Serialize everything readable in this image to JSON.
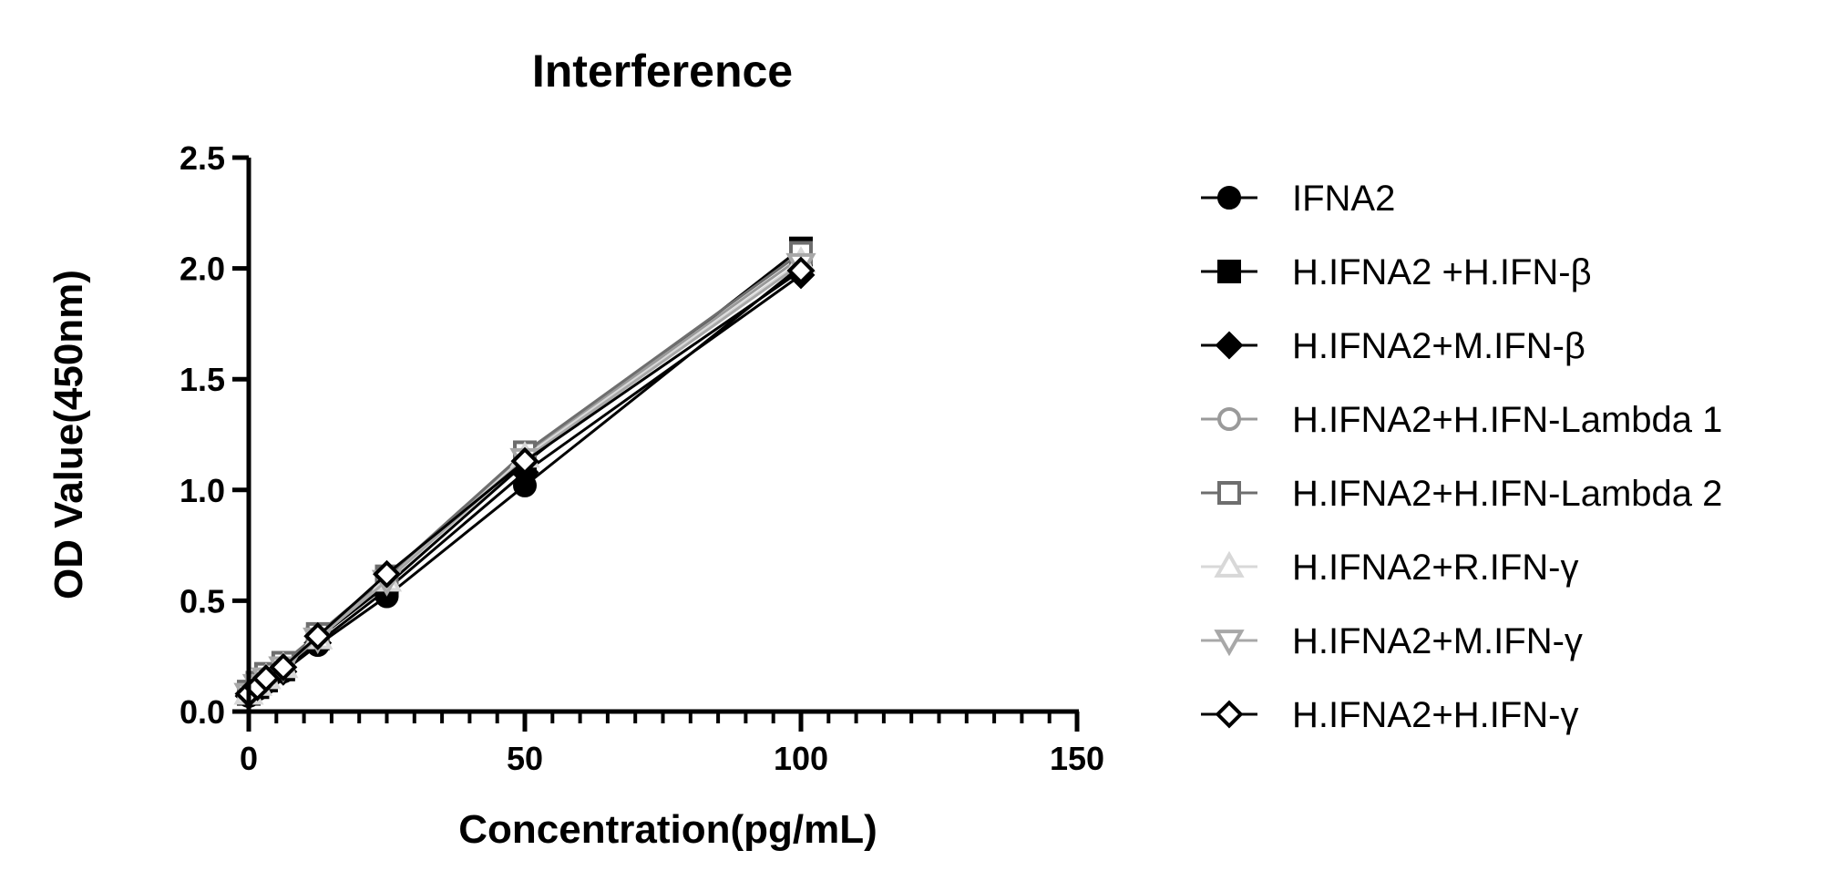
{
  "chart_data": {
    "type": "line",
    "title": "Interference",
    "xlabel": "Concentration(pg/mL)",
    "ylabel": "OD Value(450nm)",
    "xlim": [
      0,
      150
    ],
    "ylim": [
      0,
      2.5
    ],
    "xticks": [
      "0",
      "50",
      "100",
      "150"
    ],
    "yticks": [
      "0.0",
      "0.5",
      "1.0",
      "1.5",
      "2.0",
      "2.5"
    ],
    "x_minor_step": 5,
    "grid": false,
    "legend_position": "right",
    "x": [
      0,
      1.56,
      3.13,
      6.25,
      12.5,
      25,
      50,
      100
    ],
    "series": [
      {
        "name": "IFNA2",
        "marker": "circle-filled",
        "color": "#000000",
        "values": [
          0.07,
          0.1,
          0.13,
          0.18,
          0.3,
          0.52,
          1.02,
          2.01
        ]
      },
      {
        "name": "H.IFNA2 +H.IFN-β",
        "marker": "square-filled",
        "color": "#000000",
        "values": [
          0.08,
          0.11,
          0.14,
          0.19,
          0.33,
          0.57,
          1.12,
          2.09
        ]
      },
      {
        "name": "H.IFNA2+M.IFN-β",
        "marker": "diamond-filled",
        "color": "#000000",
        "values": [
          0.07,
          0.1,
          0.13,
          0.18,
          0.31,
          0.55,
          1.08,
          1.97
        ]
      },
      {
        "name": "H.IFNA2+H.IFN-Lambda 1",
        "marker": "circle-open",
        "color": "#9a9a9a",
        "values": [
          0.09,
          0.13,
          0.16,
          0.21,
          0.34,
          0.6,
          1.16,
          2.05
        ]
      },
      {
        "name": "H.IFNA2+H.IFN-Lambda 2",
        "marker": "square-open",
        "color": "#6e6e6e",
        "values": [
          0.09,
          0.13,
          0.17,
          0.22,
          0.35,
          0.61,
          1.17,
          2.07
        ]
      },
      {
        "name": "H.IFNA2+R.IFN-γ",
        "marker": "triangle-up-open",
        "color": "#d8d8d8",
        "values": [
          0.08,
          0.12,
          0.15,
          0.2,
          0.33,
          0.59,
          1.15,
          2.03
        ]
      },
      {
        "name": "H.IFNA2+M.IFN-γ",
        "marker": "triangle-down-open",
        "color": "#a8a8a8",
        "values": [
          0.08,
          0.12,
          0.15,
          0.2,
          0.33,
          0.59,
          1.14,
          2.02
        ]
      },
      {
        "name": "H.IFNA2+H.IFN-γ",
        "marker": "diamond-open",
        "color": "#000000",
        "values": [
          0.08,
          0.11,
          0.15,
          0.2,
          0.34,
          0.62,
          1.13,
          1.99
        ]
      }
    ]
  }
}
